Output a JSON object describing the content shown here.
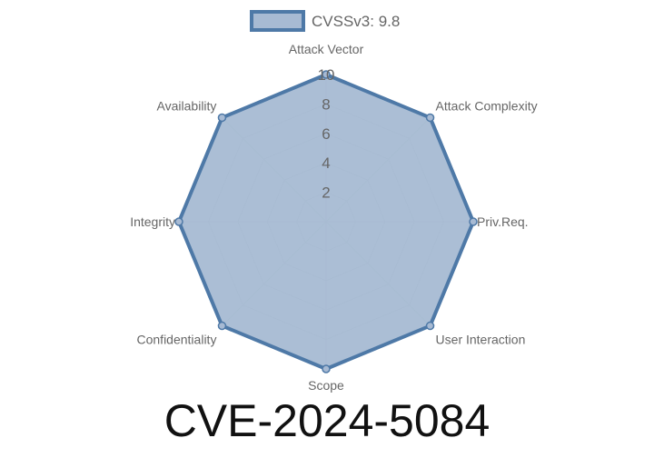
{
  "chart_data": {
    "type": "radar",
    "title": "CVE-2024-5084",
    "axes": [
      "Attack Vector",
      "Attack Complexity",
      "Priv.Req.",
      "User Interaction",
      "Scope",
      "Confidentiality",
      "Integrity",
      "Availability"
    ],
    "series": [
      {
        "name": "CVSSv3: 9.8",
        "values": [
          10,
          10,
          10,
          10,
          10,
          10,
          10,
          10
        ]
      }
    ],
    "rlim": [
      0,
      10
    ],
    "ticks": [
      "2",
      "4",
      "6",
      "8",
      "10"
    ],
    "legend": "top",
    "grid": true,
    "colors": {
      "stroke": "#4e79a7",
      "fill": "#a7bad3",
      "grid": "#c8c8c8"
    }
  }
}
